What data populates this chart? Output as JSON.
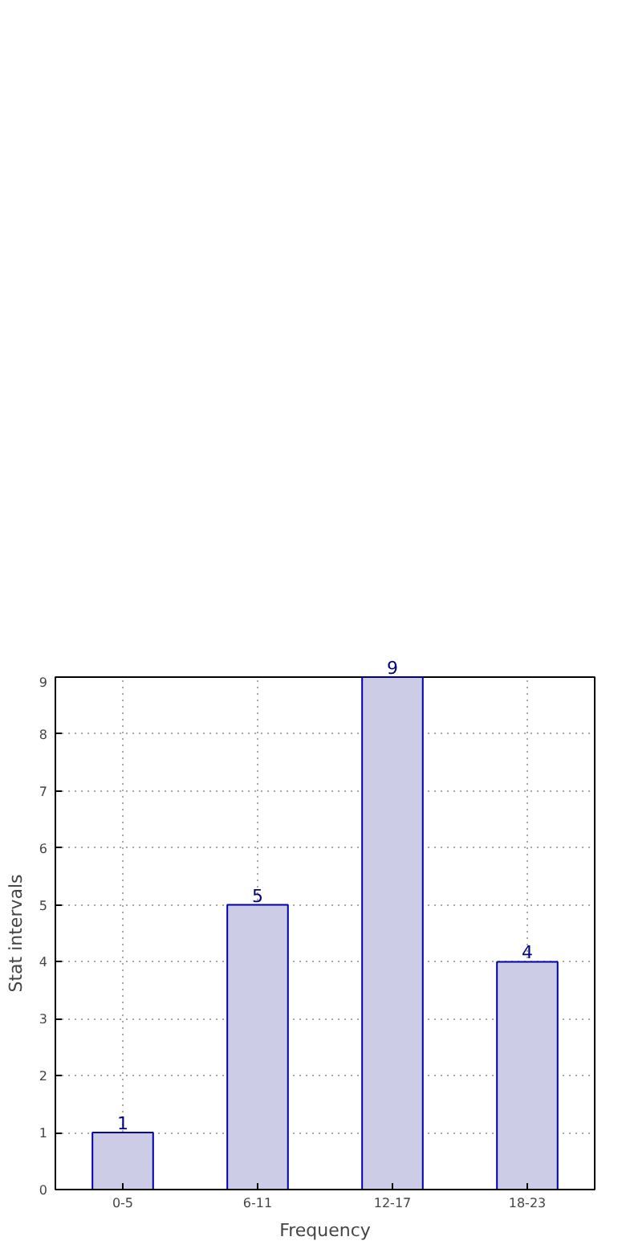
{
  "chart_data": {
    "type": "bar",
    "xlabel": "Frequency",
    "ylabel": "Stat intervals",
    "categories": [
      "0-5",
      "6-11",
      "12-17",
      "18-23"
    ],
    "values": [
      1,
      5,
      9,
      4
    ],
    "color": "#cccce6",
    "ylim": [
      0,
      9
    ],
    "yticks": [
      0,
      1,
      2,
      3,
      4,
      5,
      6,
      7,
      8,
      9
    ],
    "grid": true,
    "data_labels": true
  }
}
